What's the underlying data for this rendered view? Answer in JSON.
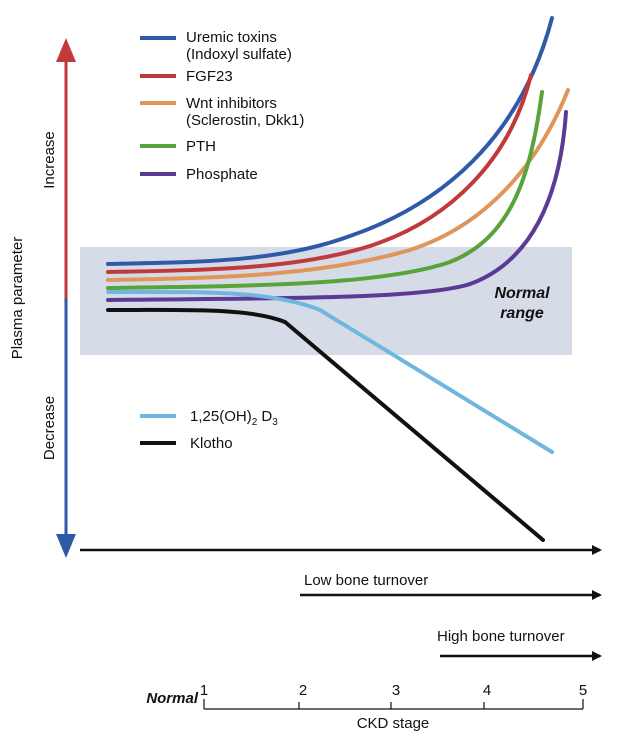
{
  "y_axis": {
    "label": "Plasma parameter",
    "increase": "Increase",
    "decrease": "Decrease"
  },
  "normal_range": {
    "line1": "Normal",
    "line2": "range"
  },
  "legend_increasing": [
    {
      "name": "Uremic toxins",
      "sub": "(Indoxyl sulfate)",
      "color": "#2e5aa8"
    },
    {
      "name": "FGF23",
      "sub": "",
      "color": "#c0393b"
    },
    {
      "name": "Wnt inhibitors",
      "sub": "(Sclerostin, Dkk1)",
      "color": "#e0965a"
    },
    {
      "name": "PTH",
      "sub": "",
      "color": "#58a33a"
    },
    {
      "name": "Phosphate",
      "sub": "",
      "color": "#5b3a93"
    }
  ],
  "legend_decreasing": [
    {
      "name_pre": "1,25(OH)",
      "name_sub": "2",
      "name_post": " D",
      "name_sub2": "3",
      "color": "#6fb6e0"
    },
    {
      "name": "Klotho",
      "color": "#111111"
    }
  ],
  "arrows": {
    "low_bone_turnover": "Low bone turnover",
    "high_bone_turnover": "High bone turnover"
  },
  "x_axis": {
    "normal_label": "Normal",
    "ticks": [
      "1",
      "2",
      "3",
      "4",
      "5"
    ],
    "label": "CKD stage"
  },
  "colors": {
    "increase_arrow": "#c0393b",
    "decrease_arrow": "#2e5aa8",
    "normal_band": "#d6dbe8"
  }
}
